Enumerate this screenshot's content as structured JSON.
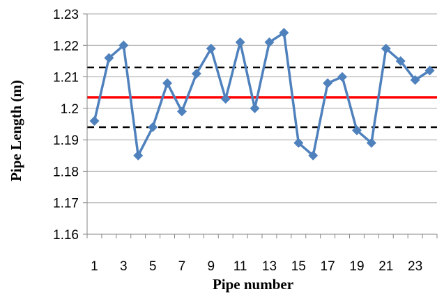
{
  "chart_data": {
    "type": "line",
    "xlabel": "Pipe number",
    "ylabel": "Pipe Length (m)",
    "ylim": [
      1.16,
      1.23
    ],
    "y_ticks": [
      "1.16",
      "1.17",
      "1.18",
      "1.19",
      "1.2",
      "1.21",
      "1.22",
      "1.23"
    ],
    "x_ticks": [
      "1",
      "3",
      "5",
      "7",
      "9",
      "11",
      "13",
      "15",
      "17",
      "19",
      "21",
      "23"
    ],
    "grid": "horizontal",
    "x": [
      1,
      2,
      3,
      4,
      5,
      6,
      7,
      8,
      9,
      10,
      11,
      12,
      13,
      14,
      15,
      16,
      17,
      18,
      19,
      20,
      21,
      22,
      23,
      24
    ],
    "series": [
      {
        "values": [
          1.196,
          1.216,
          1.22,
          1.185,
          1.194,
          1.208,
          1.199,
          1.211,
          1.219,
          1.203,
          1.221,
          1.2,
          1.221,
          1.224,
          1.189,
          1.185,
          1.208,
          1.21,
          1.193,
          1.189,
          1.219,
          1.215,
          1.209,
          1.212
        ],
        "color": "#4f81bd",
        "marker": "diamond"
      }
    ],
    "reference_lines": [
      {
        "value": 1.2035,
        "color": "#ff0000",
        "style": "solid"
      },
      {
        "value": 1.213,
        "color": "#000000",
        "style": "dashed"
      },
      {
        "value": 1.194,
        "color": "#000000",
        "style": "dashed"
      }
    ]
  }
}
